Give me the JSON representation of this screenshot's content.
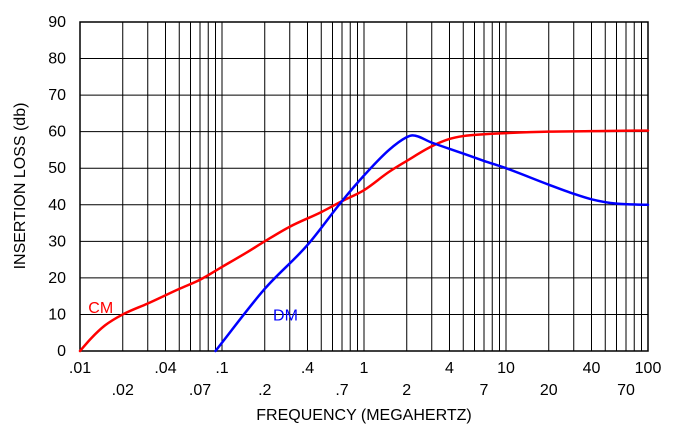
{
  "chart_data": {
    "type": "line",
    "xlabel": "FREQUENCY (MEGAHERTZ)",
    "ylabel": "INSERTION LOSS (db)",
    "x_scale": "log",
    "xlim": [
      0.01,
      100
    ],
    "ylim": [
      0,
      90
    ],
    "grid": true,
    "legend": "inline labels",
    "y_ticks": [
      0,
      10,
      20,
      30,
      40,
      50,
      60,
      70,
      80,
      90
    ],
    "x_ticks_upper": [
      {
        "value": 0.01,
        "label": ".01"
      },
      {
        "value": 0.04,
        "label": ".04"
      },
      {
        "value": 0.1,
        "label": ".1"
      },
      {
        "value": 0.4,
        "label": ".4"
      },
      {
        "value": 1,
        "label": "1"
      },
      {
        "value": 4,
        "label": "4"
      },
      {
        "value": 10,
        "label": "10"
      },
      {
        "value": 40,
        "label": "40"
      },
      {
        "value": 100,
        "label": "100"
      }
    ],
    "x_ticks_lower": [
      {
        "value": 0.02,
        "label": ".02"
      },
      {
        "value": 0.07,
        "label": ".07"
      },
      {
        "value": 0.2,
        "label": ".2"
      },
      {
        "value": 0.7,
        "label": ".7"
      },
      {
        "value": 2,
        "label": "2"
      },
      {
        "value": 7,
        "label": "7"
      },
      {
        "value": 20,
        "label": "20"
      },
      {
        "value": 70,
        "label": "70"
      }
    ],
    "series": [
      {
        "name": "CM",
        "color": "#ff0000",
        "label_at": [
          0.014,
          12
        ],
        "points": [
          [
            0.01,
            0
          ],
          [
            0.012,
            3.5
          ],
          [
            0.015,
            7
          ],
          [
            0.02,
            10
          ],
          [
            0.03,
            13
          ],
          [
            0.05,
            17
          ],
          [
            0.07,
            19.5
          ],
          [
            0.1,
            23
          ],
          [
            0.15,
            27
          ],
          [
            0.2,
            30
          ],
          [
            0.3,
            34
          ],
          [
            0.5,
            38
          ],
          [
            0.7,
            41
          ],
          [
            1,
            44
          ],
          [
            1.5,
            49
          ],
          [
            2,
            52
          ],
          [
            3,
            56
          ],
          [
            4,
            58
          ],
          [
            5,
            58.8
          ],
          [
            7,
            59.3
          ],
          [
            10,
            59.6
          ],
          [
            20,
            60
          ],
          [
            50,
            60.2
          ],
          [
            100,
            60.3
          ]
        ]
      },
      {
        "name": "DM",
        "color": "#0000ff",
        "label_at": [
          0.28,
          10
        ],
        "points": [
          [
            0.09,
            0
          ],
          [
            0.2,
            17
          ],
          [
            0.4,
            29
          ],
          [
            0.7,
            41
          ],
          [
            1,
            48
          ],
          [
            1.5,
            55
          ],
          [
            2,
            58.5
          ],
          [
            2.2,
            59
          ],
          [
            3,
            57
          ],
          [
            5,
            54
          ],
          [
            7,
            52
          ],
          [
            10,
            50
          ],
          [
            20,
            45.5
          ],
          [
            30,
            43
          ],
          [
            40,
            41.5
          ],
          [
            60,
            40.3
          ],
          [
            100,
            40
          ]
        ]
      }
    ]
  }
}
